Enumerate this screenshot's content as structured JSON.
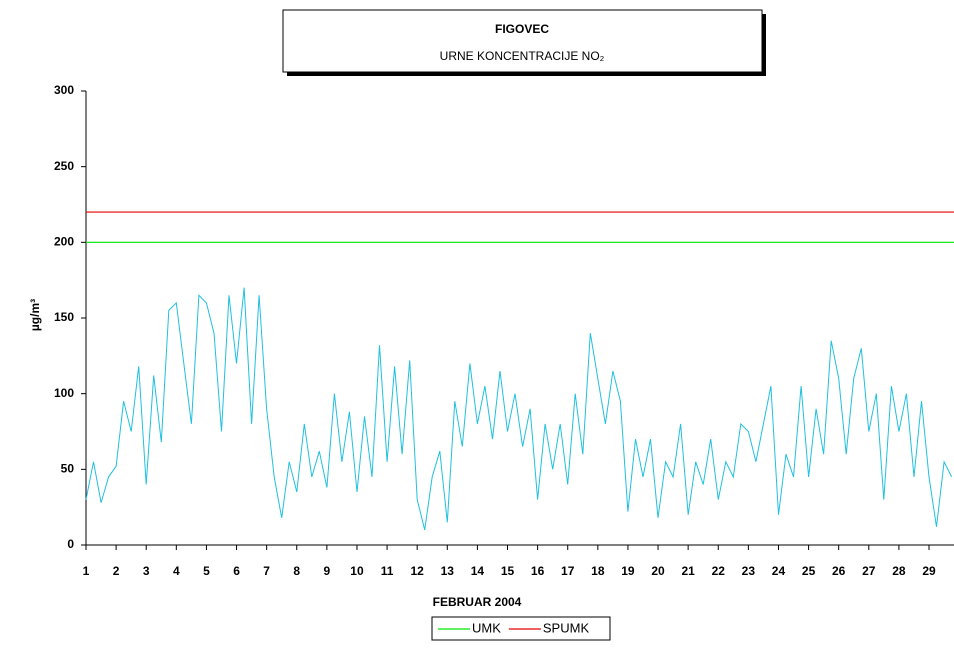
{
  "chart_data": {
    "type": "line",
    "title": "FIGOVEC",
    "subtitle": "URNE KONCENTRACIJE NO₂",
    "x_label": "FEBRUAR 2004",
    "y_label": "µg/m³",
    "xlim": [
      1,
      29.83
    ],
    "ylim": [
      0,
      300
    ],
    "xticks": [
      1,
      2,
      3,
      4,
      5,
      6,
      7,
      8,
      9,
      10,
      11,
      12,
      13,
      14,
      15,
      16,
      17,
      18,
      19,
      20,
      21,
      22,
      23,
      24,
      25,
      26,
      27,
      28,
      29
    ],
    "yticks": [
      0,
      50,
      100,
      150,
      200,
      250,
      300
    ],
    "thresholds": [
      {
        "name": "UMK",
        "value": 200,
        "color": "#00e600"
      },
      {
        "name": "SPUMK",
        "value": 220,
        "color": "#e60000"
      }
    ],
    "series": [
      {
        "color": "#20c0e0",
        "x": [
          1,
          1.25,
          1.5,
          1.75,
          2,
          2.25,
          2.5,
          2.75,
          3,
          3.25,
          3.5,
          3.75,
          4,
          4.25,
          4.5,
          4.75,
          5,
          5.25,
          5.5,
          5.75,
          6,
          6.25,
          6.5,
          6.75,
          7,
          7.25,
          7.5,
          7.75,
          8,
          8.25,
          8.5,
          8.75,
          9,
          9.25,
          9.5,
          9.75,
          10,
          10.25,
          10.5,
          10.75,
          11,
          11.25,
          11.5,
          11.75,
          12,
          12.25,
          12.5,
          12.75,
          13,
          13.25,
          13.5,
          13.75,
          14,
          14.25,
          14.5,
          14.75,
          15,
          15.25,
          15.5,
          15.75,
          16,
          16.25,
          16.5,
          16.75,
          17,
          17.25,
          17.5,
          17.75,
          18,
          18.25,
          18.5,
          18.75,
          19,
          19.25,
          19.5,
          19.75,
          20,
          20.25,
          20.5,
          20.75,
          21,
          21.25,
          21.5,
          21.75,
          22,
          22.25,
          22.5,
          22.75,
          23,
          23.25,
          23.5,
          23.75,
          24,
          24.25,
          24.5,
          24.75,
          25,
          25.25,
          25.5,
          25.75,
          26,
          26.25,
          26.5,
          26.75,
          27,
          27.25,
          27.5,
          27.75,
          28,
          28.25,
          28.5,
          28.75,
          29,
          29.25,
          29.5,
          29.75
        ],
        "values": [
          30,
          55,
          28,
          45,
          52,
          95,
          75,
          118,
          40,
          112,
          68,
          155,
          160,
          120,
          80,
          165,
          160,
          140,
          75,
          165,
          120,
          170,
          80,
          165,
          90,
          45,
          18,
          55,
          35,
          80,
          45,
          62,
          38,
          100,
          55,
          88,
          35,
          85,
          45,
          132,
          55,
          118,
          60,
          122,
          30,
          10,
          45,
          62,
          15,
          95,
          65,
          120,
          80,
          105,
          70,
          115,
          75,
          100,
          65,
          90,
          30,
          80,
          50,
          80,
          40,
          100,
          60,
          140,
          110,
          80,
          115,
          95,
          22,
          70,
          45,
          70,
          18,
          55,
          45,
          80,
          20,
          55,
          40,
          70,
          30,
          55,
          45,
          80,
          75,
          55,
          80,
          105,
          20,
          60,
          45,
          105,
          45,
          90,
          60,
          135,
          110,
          60,
          110,
          130,
          75,
          100,
          30,
          105,
          75,
          100,
          45,
          95,
          45,
          12,
          55,
          45
        ]
      }
    ]
  }
}
